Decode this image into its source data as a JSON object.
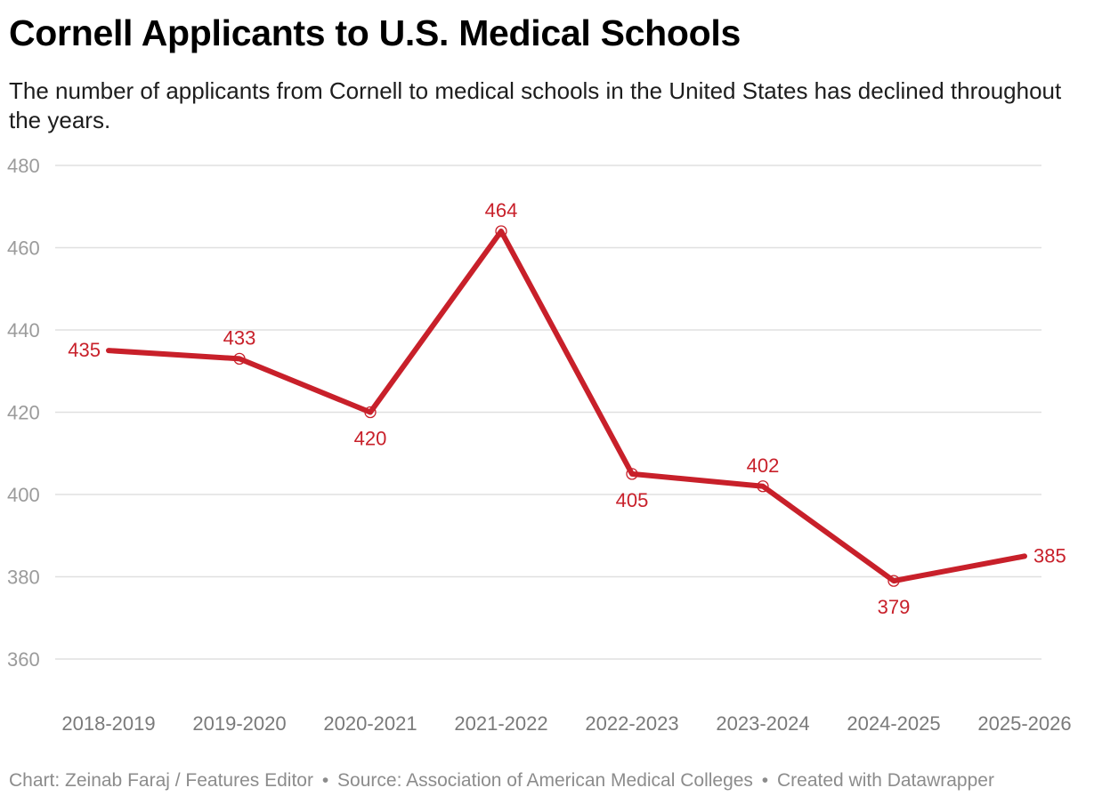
{
  "header": {
    "title": "Cornell Applicants to U.S. Medical Schools",
    "subtitle": "The number of applicants from Cornell to medical schools in the United States has declined throughout the years."
  },
  "footer": {
    "chart_credit": "Chart: Zeinab Faraj / Features Editor",
    "separator": "•",
    "source": "Source: Association of American Medical Colleges",
    "created_with": "Created with Datawrapper"
  },
  "colors": {
    "line": "#c8202a",
    "label": "#c8202a",
    "grid": "#e0e0e0",
    "axis_text": "#9b9b9b",
    "x_text": "#7a7a7a"
  },
  "chart_data": {
    "type": "line",
    "title": "Cornell Applicants to U.S. Medical Schools",
    "xlabel": "",
    "ylabel": "",
    "categories": [
      "2018-2019",
      "2019-2020",
      "2020-2021",
      "2021-2022",
      "2022-2023",
      "2023-2024",
      "2024-2025",
      "2025-2026"
    ],
    "series": [
      {
        "name": "Applicants",
        "values": [
          435,
          433,
          420,
          464,
          405,
          402,
          379,
          385
        ]
      }
    ],
    "ylim": [
      360,
      480
    ],
    "yticks": [
      480,
      460,
      440,
      420,
      400,
      380,
      360
    ],
    "grid": true,
    "data_labels": [
      {
        "text": "435",
        "position": "left"
      },
      {
        "text": "433",
        "position": "above"
      },
      {
        "text": "420",
        "position": "below"
      },
      {
        "text": "464",
        "position": "above"
      },
      {
        "text": "405",
        "position": "below"
      },
      {
        "text": "402",
        "position": "above"
      },
      {
        "text": "379",
        "position": "below"
      },
      {
        "text": "385",
        "position": "right"
      }
    ]
  }
}
